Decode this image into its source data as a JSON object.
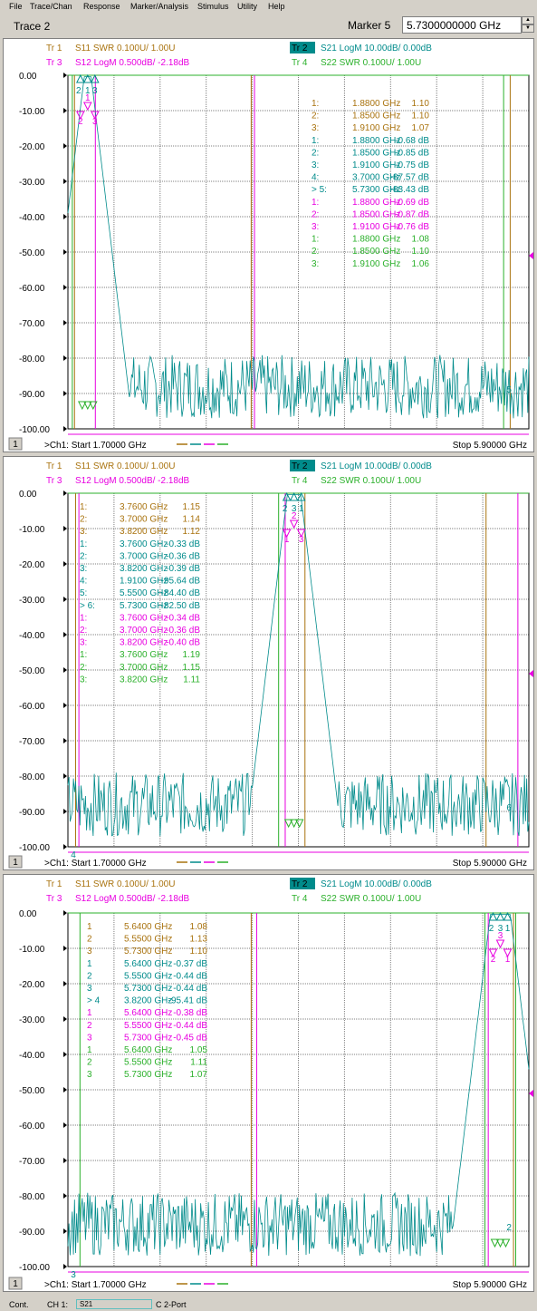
{
  "menu": [
    "File",
    "Trace/Chan",
    "Response",
    "Marker/Analysis",
    "Stimulus",
    "Utility",
    "Help"
  ],
  "title": "Trace 2",
  "marker_label": "Marker 5",
  "marker_value": "5.7300000000 GHz",
  "colors": {
    "tr1": "#a9730f",
    "tr2": "#008b8b",
    "tr3": "#e800e0",
    "tr4": "#2bb02b",
    "grid": "#808080"
  },
  "traces": {
    "tr1": {
      "label": "Tr  1",
      "text": "S11  SWR 0.100U/  1.00U"
    },
    "tr2": {
      "label": "Tr  2",
      "text": "S21  LogM 10.00dB/  0.00dB"
    },
    "tr3": {
      "label": "Tr  3",
      "text": "S12  LogM 0.500dB/  -2.18dB"
    },
    "tr4": {
      "label": "Tr  4",
      "text": "S22  SWR 0.100U/  1.00U"
    }
  },
  "y_ticks": [
    "0.00",
    "-10.00",
    "-20.00",
    "-30.00",
    "-40.00",
    "-50.00",
    "-60.00",
    "-70.00",
    "-80.00",
    "-90.00",
    "-100.00"
  ],
  "footer": {
    "ch": "1",
    "start": ">Ch1: Start  1.70000 GHz",
    "stop": "Stop  5.90000 GHz"
  },
  "panels": [
    {
      "markers": [
        {
          "n": "1:",
          "f": "1.8800 GHz",
          "v": "1.10",
          "t": 1
        },
        {
          "n": "2:",
          "f": "1.8500 GHz",
          "v": "1.10",
          "t": 1
        },
        {
          "n": "3:",
          "f": "1.9100 GHz",
          "v": "1.07",
          "t": 1
        },
        {
          "n": "1:",
          "f": "1.8800 GHz",
          "v": "-0.68 dB",
          "t": 2
        },
        {
          "n": "2:",
          "f": "1.8500 GHz",
          "v": "-0.85 dB",
          "t": 2
        },
        {
          "n": "3:",
          "f": "1.9100 GHz",
          "v": "-0.75 dB",
          "t": 2
        },
        {
          "n": "4:",
          "f": "3.7000 GHz",
          "v": "-87.57 dB",
          "t": 2
        },
        {
          "n": "> 5:",
          "f": "5.7300 GHz",
          "v": "-83.43 dB",
          "t": 2
        },
        {
          "n": "1:",
          "f": "1.8800 GHz",
          "v": "-0.69 dB",
          "t": 3
        },
        {
          "n": "2:",
          "f": "1.8500 GHz",
          "v": "-0.87 dB",
          "t": 3
        },
        {
          "n": "3:",
          "f": "1.9100 GHz",
          "v": "-0.76 dB",
          "t": 3
        },
        {
          "n": "1:",
          "f": "1.8800 GHz",
          "v": "1.08",
          "t": 4
        },
        {
          "n": "2:",
          "f": "1.8500 GHz",
          "v": "1.10",
          "t": 4
        },
        {
          "n": "3:",
          "f": "1.9100 GHz",
          "v": "1.06",
          "t": 4
        }
      ],
      "plot_labels": [
        "2",
        "3",
        "1",
        "2",
        "1",
        "3",
        "5"
      ]
    },
    {
      "markers": [
        {
          "n": "1:",
          "f": "3.7600 GHz",
          "v": "1.15",
          "t": 1
        },
        {
          "n": "2:",
          "f": "3.7000 GHz",
          "v": "1.14",
          "t": 1
        },
        {
          "n": "3:",
          "f": "3.8200 GHz",
          "v": "1.12",
          "t": 1
        },
        {
          "n": "1:",
          "f": "3.7600 GHz",
          "v": "-0.33 dB",
          "t": 2
        },
        {
          "n": "2:",
          "f": "3.7000 GHz",
          "v": "-0.36 dB",
          "t": 2
        },
        {
          "n": "3:",
          "f": "3.8200 GHz",
          "v": "-0.39 dB",
          "t": 2
        },
        {
          "n": "4:",
          "f": "1.9100 GHz",
          "v": "-95.64 dB",
          "t": 2
        },
        {
          "n": "5:",
          "f": "5.5500 GHz",
          "v": "-84.40 dB",
          "t": 2
        },
        {
          "n": "> 6:",
          "f": "5.7300 GHz",
          "v": "-82.50 dB",
          "t": 2
        },
        {
          "n": "1:",
          "f": "3.7600 GHz",
          "v": "-0.34 dB",
          "t": 3
        },
        {
          "n": "2:",
          "f": "3.7000 GHz",
          "v": "-0.36 dB",
          "t": 3
        },
        {
          "n": "3:",
          "f": "3.8200 GHz",
          "v": "-0.40 dB",
          "t": 3
        },
        {
          "n": "1:",
          "f": "3.7600 GHz",
          "v": "1.19",
          "t": 4
        },
        {
          "n": "2:",
          "f": "3.7000 GHz",
          "v": "1.15",
          "t": 4
        },
        {
          "n": "3:",
          "f": "3.8200 GHz",
          "v": "1.11",
          "t": 4
        }
      ],
      "plot_labels": [
        "2",
        "1",
        "3",
        "1",
        "2",
        "3",
        "6",
        "4"
      ]
    },
    {
      "markers": [
        {
          "n": "1",
          "f": "5.6400 GHz",
          "v": "1.08",
          "t": 1
        },
        {
          "n": "2",
          "f": "5.5500 GHz",
          "v": "1.13",
          "t": 1
        },
        {
          "n": "3",
          "f": "5.7300 GHz",
          "v": "1.10",
          "t": 1
        },
        {
          "n": "1",
          "f": "5.6400 GHz",
          "v": "-0.37 dB",
          "t": 2
        },
        {
          "n": "2",
          "f": "5.5500 GHz",
          "v": "-0.44 dB",
          "t": 2
        },
        {
          "n": "3",
          "f": "5.7300 GHz",
          "v": "-0.44 dB",
          "t": 2
        },
        {
          "n": "> 4",
          "f": "3.8200 GHz",
          "v": "-95.41 dB",
          "t": 2
        },
        {
          "n": "1",
          "f": "5.6400 GHz",
          "v": "-0.38 dB",
          "t": 3
        },
        {
          "n": "2",
          "f": "5.5500 GHz",
          "v": "-0.44 dB",
          "t": 3
        },
        {
          "n": "3",
          "f": "5.7300 GHz",
          "v": "-0.45 dB",
          "t": 3
        },
        {
          "n": "1",
          "f": "5.6400 GHz",
          "v": "1.05",
          "t": 4
        },
        {
          "n": "2",
          "f": "5.5500 GHz",
          "v": "1.11",
          "t": 4
        },
        {
          "n": "3",
          "f": "5.7300 GHz",
          "v": "1.07",
          "t": 4
        }
      ],
      "plot_labels": [
        "2",
        "1",
        "3",
        "2",
        "3",
        "1",
        "2",
        "3"
      ]
    }
  ],
  "status": {
    "mode": "Cont.",
    "channel": "CH 1:",
    "param": "S21",
    "cal": "C  2-Port"
  }
}
